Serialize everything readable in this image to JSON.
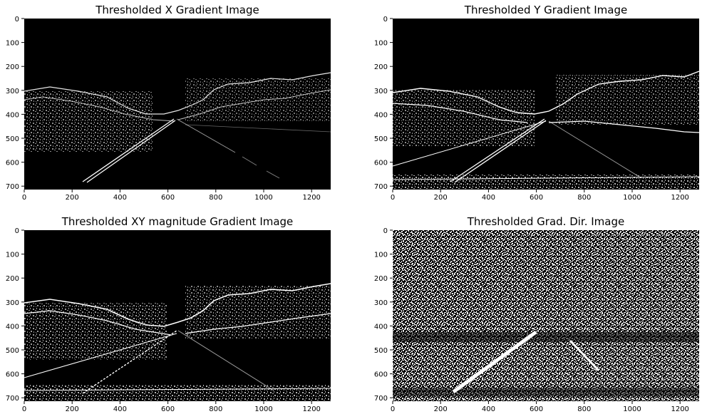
{
  "figure": {
    "panels": [
      {
        "title": "Thresholded X Gradient Image",
        "xticks": [
          "0",
          "200",
          "400",
          "600",
          "800",
          "1000",
          "1200"
        ],
        "yticks": [
          "0",
          "100",
          "200",
          "300",
          "400",
          "500",
          "600",
          "700"
        ]
      },
      {
        "title": "Thresholded Y Gradient Image",
        "xticks": [
          "0",
          "200",
          "400",
          "600",
          "800",
          "1000",
          "1200"
        ],
        "yticks": [
          "0",
          "100",
          "200",
          "300",
          "400",
          "500",
          "600",
          "700"
        ]
      },
      {
        "title": "Thresholded XY magnitude Gradient Image",
        "xticks": [
          "0",
          "200",
          "400",
          "600",
          "800",
          "1000",
          "1200"
        ],
        "yticks": [
          "0",
          "100",
          "200",
          "300",
          "400",
          "500",
          "600",
          "700"
        ]
      },
      {
        "title": "Thresholded Grad. Dir. Image",
        "xticks": [
          "0",
          "200",
          "400",
          "600",
          "800",
          "1000",
          "1200"
        ],
        "yticks": [
          "0",
          "100",
          "200",
          "300",
          "400",
          "500",
          "600",
          "700"
        ]
      }
    ]
  }
}
